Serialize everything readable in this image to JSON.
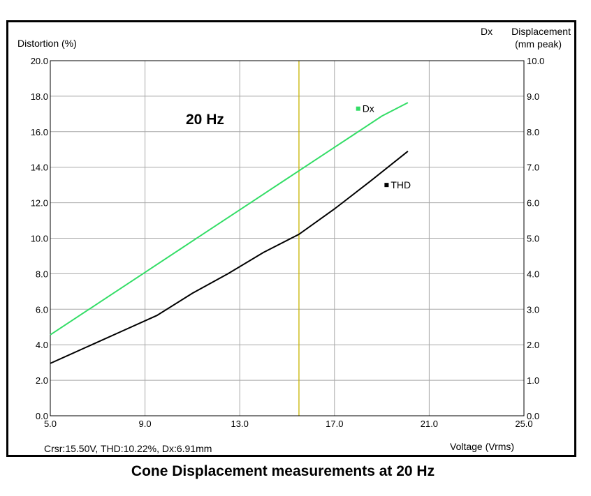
{
  "caption": "Cone Displacement measurements at 20 Hz",
  "chart_data": {
    "type": "line",
    "annotation": "20 Hz",
    "cursor_readout": "Crsr:15.50V, THD:10.22%, Dx:6.91mm",
    "cursor_x": 15.5,
    "xlabel": "Voltage (Vrms)",
    "ylabel_left": "Distortion (%)",
    "ylabel_right_series": "Dx",
    "ylabel_right_line1": "Displacement",
    "ylabel_right_line2": "(mm peak)",
    "xlim": [
      5.0,
      25.0
    ],
    "ylim_left": [
      0.0,
      20.0
    ],
    "ylim_right": [
      0.0,
      10.0
    ],
    "x_ticks": [
      "5.0",
      "9.0",
      "13.0",
      "17.0",
      "21.0",
      "25.0"
    ],
    "y_ticks_left": [
      "0.0",
      "2.0",
      "4.0",
      "6.0",
      "8.0",
      "10.0",
      "12.0",
      "14.0",
      "16.0",
      "18.0",
      "20.0"
    ],
    "y_ticks_right": [
      "0.0",
      "1.0",
      "2.0",
      "3.0",
      "4.0",
      "5.0",
      "6.0",
      "7.0",
      "8.0",
      "9.0",
      "10.0"
    ],
    "grid": true,
    "series": [
      {
        "name": "Dx",
        "axis": "right",
        "color": "#33dd66",
        "x": [
          5.0,
          7.0,
          9.0,
          11.0,
          13.0,
          15.0,
          17.0,
          19.0,
          20.1
        ],
        "y": [
          2.28,
          3.16,
          4.04,
          4.92,
          5.8,
          6.68,
          7.56,
          8.44,
          8.82
        ]
      },
      {
        "name": "THD",
        "axis": "left",
        "color": "#000000",
        "x": [
          5.0,
          6.5,
          8.0,
          9.5,
          11.0,
          12.5,
          14.0,
          15.5,
          17.0,
          18.5,
          20.1
        ],
        "y": [
          2.95,
          3.85,
          4.75,
          5.65,
          6.9,
          8.0,
          9.2,
          10.22,
          11.65,
          13.2,
          14.9
        ]
      }
    ]
  }
}
